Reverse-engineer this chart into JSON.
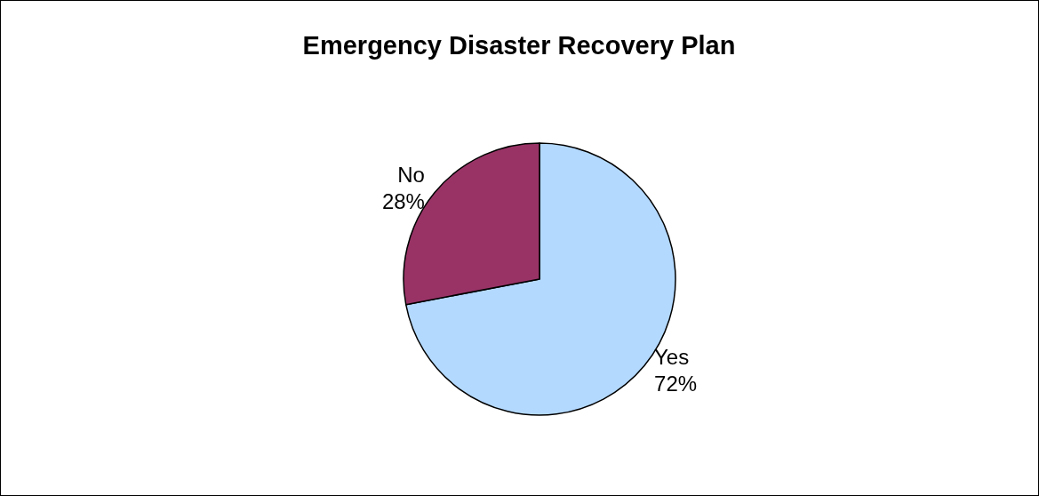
{
  "chart_data": {
    "type": "pie",
    "title": "Emergency Disaster Recovery Plan",
    "categories": [
      "Yes",
      "No"
    ],
    "values": [
      72,
      28
    ],
    "colors": [
      "#b3d9ff",
      "#993366"
    ],
    "value_labels": [
      "72%",
      "28%"
    ],
    "legend": false
  }
}
